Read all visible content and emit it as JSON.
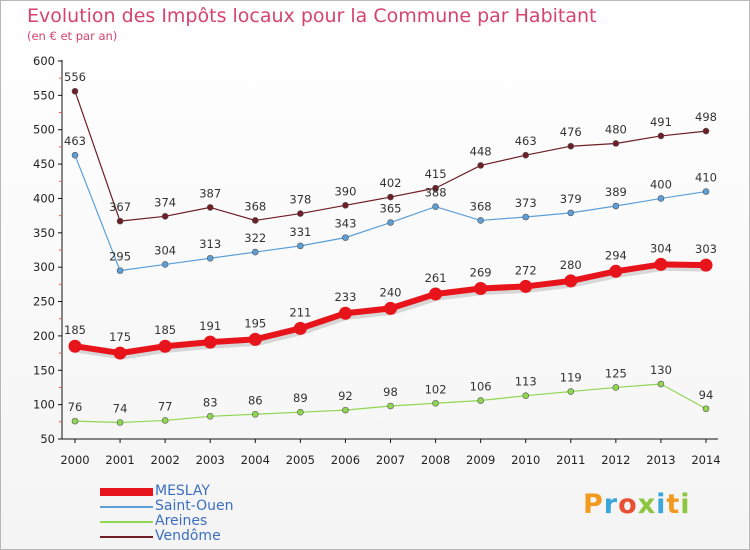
{
  "page": {
    "title": "Evolution des Impôts locaux pour la Commune par Habitant",
    "subtitle": "(en € et par an)"
  },
  "logo": {
    "text": "Proxiti",
    "letters": [
      {
        "ch": "P",
        "color": "#f29a1e"
      },
      {
        "ch": "r",
        "color": "#3aa6d9"
      },
      {
        "ch": "o",
        "color": "#e94f35"
      },
      {
        "ch": "x",
        "color": "#8cc63f"
      },
      {
        "ch": "i",
        "color": "#3aa6d9"
      },
      {
        "ch": "t",
        "color": "#f29a1e"
      },
      {
        "ch": "i",
        "color": "#8cc63f"
      }
    ]
  },
  "chart_data": {
    "type": "line",
    "title": "Evolution des Impôts locaux pour la Commune par Habitant",
    "subtitle": "(en € et par an)",
    "x": [
      2000,
      2001,
      2002,
      2003,
      2004,
      2005,
      2006,
      2007,
      2008,
      2009,
      2010,
      2011,
      2012,
      2013,
      2014
    ],
    "ylim": [
      50,
      600
    ],
    "yticks": [
      50,
      100,
      150,
      200,
      250,
      300,
      350,
      400,
      450,
      500,
      550,
      600
    ],
    "grid": false,
    "legend_position": "bottom-left",
    "series": [
      {
        "name": "Vendôme",
        "color": "#6e1e24",
        "values": [
          556,
          367,
          374,
          387,
          368,
          378,
          390,
          402,
          415,
          448,
          463,
          476,
          480,
          491,
          498
        ]
      },
      {
        "name": "Saint-Ouen",
        "color": "#5c9fd6",
        "values": [
          463,
          295,
          304,
          313,
          322,
          331,
          343,
          365,
          388,
          368,
          373,
          379,
          389,
          400,
          410
        ]
      },
      {
        "name": "Areines",
        "color": "#8fd651",
        "values": [
          76,
          74,
          77,
          83,
          86,
          89,
          92,
          98,
          102,
          106,
          113,
          119,
          125,
          130,
          94
        ]
      },
      {
        "name": "MESLAY",
        "color": "#e8141b",
        "values": [
          185,
          175,
          185,
          191,
          195,
          211,
          233,
          240,
          261,
          269,
          272,
          280,
          294,
          304,
          303
        ]
      }
    ],
    "legend_order": [
      "MESLAY",
      "Saint-Ouen",
      "Areines",
      "Vendôme"
    ]
  }
}
